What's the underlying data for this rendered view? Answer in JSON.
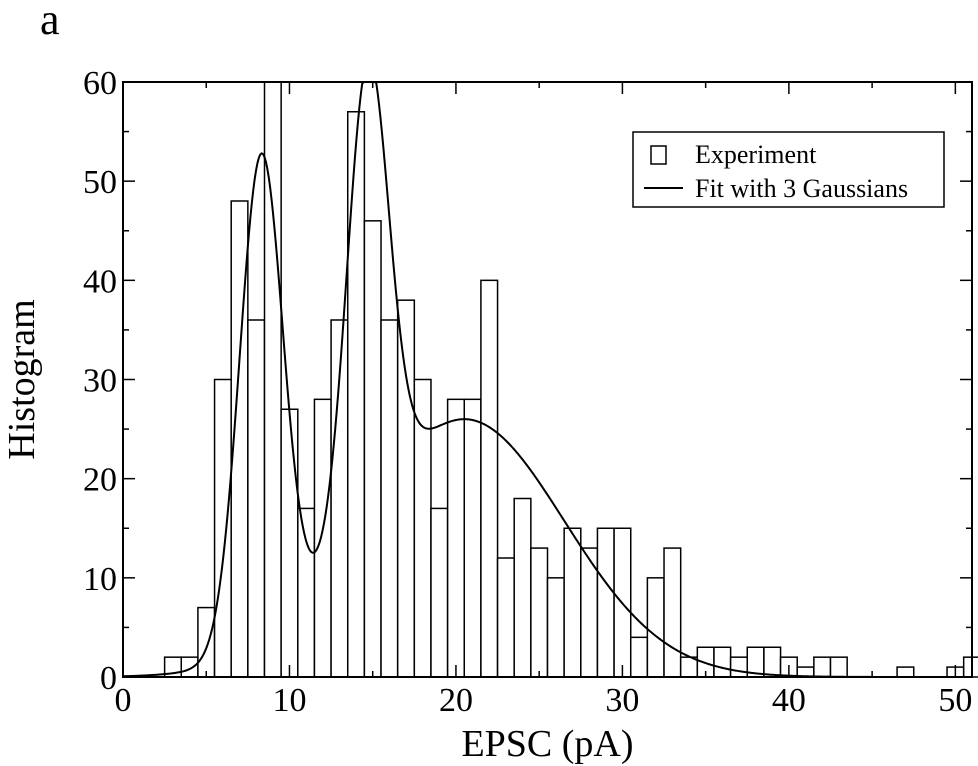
{
  "panel_label": "a",
  "chart_data": {
    "type": "bar",
    "title": "",
    "xlabel": "EPSC (pA)",
    "ylabel": "Histogram",
    "xlim": [
      0,
      51
    ],
    "ylim": [
      0,
      60
    ],
    "grid": false,
    "legend_position": "top-right",
    "x_ticks": [
      0,
      10,
      20,
      30,
      40,
      50
    ],
    "y_ticks": [
      0,
      10,
      20,
      30,
      40,
      50,
      60
    ],
    "bin_width": 1,
    "bins": [
      {
        "x": 3,
        "y": 2
      },
      {
        "x": 4,
        "y": 2
      },
      {
        "x": 5,
        "y": 7
      },
      {
        "x": 6,
        "y": 30
      },
      {
        "x": 7,
        "y": 48
      },
      {
        "x": 8,
        "y": 36
      },
      {
        "x": 9,
        "y": 60
      },
      {
        "x": 10,
        "y": 27
      },
      {
        "x": 11,
        "y": 17
      },
      {
        "x": 12,
        "y": 28
      },
      {
        "x": 13,
        "y": 36
      },
      {
        "x": 14,
        "y": 57
      },
      {
        "x": 15,
        "y": 46
      },
      {
        "x": 16,
        "y": 36
      },
      {
        "x": 17,
        "y": 38
      },
      {
        "x": 18,
        "y": 30
      },
      {
        "x": 19,
        "y": 17
      },
      {
        "x": 20,
        "y": 28
      },
      {
        "x": 21,
        "y": 28
      },
      {
        "x": 22,
        "y": 40
      },
      {
        "x": 23,
        "y": 12
      },
      {
        "x": 24,
        "y": 18
      },
      {
        "x": 25,
        "y": 13
      },
      {
        "x": 26,
        "y": 10
      },
      {
        "x": 27,
        "y": 15
      },
      {
        "x": 28,
        "y": 13
      },
      {
        "x": 29,
        "y": 15
      },
      {
        "x": 30,
        "y": 15
      },
      {
        "x": 31,
        "y": 4
      },
      {
        "x": 32,
        "y": 10
      },
      {
        "x": 33,
        "y": 13
      },
      {
        "x": 34,
        "y": 2
      },
      {
        "x": 35,
        "y": 3
      },
      {
        "x": 36,
        "y": 3
      },
      {
        "x": 37,
        "y": 2
      },
      {
        "x": 38,
        "y": 3
      },
      {
        "x": 39,
        "y": 3
      },
      {
        "x": 40,
        "y": 2
      },
      {
        "x": 41,
        "y": 1
      },
      {
        "x": 42,
        "y": 2
      },
      {
        "x": 43,
        "y": 2
      },
      {
        "x": 47,
        "y": 1
      },
      {
        "x": 50,
        "y": 1
      },
      {
        "x": 51,
        "y": 2
      }
    ],
    "series": [
      {
        "name": "Experiment",
        "kind": "histogram"
      },
      {
        "name": "Fit with 3 Gaussians",
        "kind": "line",
        "components": [
          {
            "amplitude": 49.5,
            "mean": 8.3,
            "sigma": 1.3
          },
          {
            "amplitude": 46.0,
            "mean": 14.7,
            "sigma": 1.25
          },
          {
            "amplitude": 26.0,
            "mean": 20.5,
            "sigma": 6.0
          }
        ]
      }
    ]
  }
}
